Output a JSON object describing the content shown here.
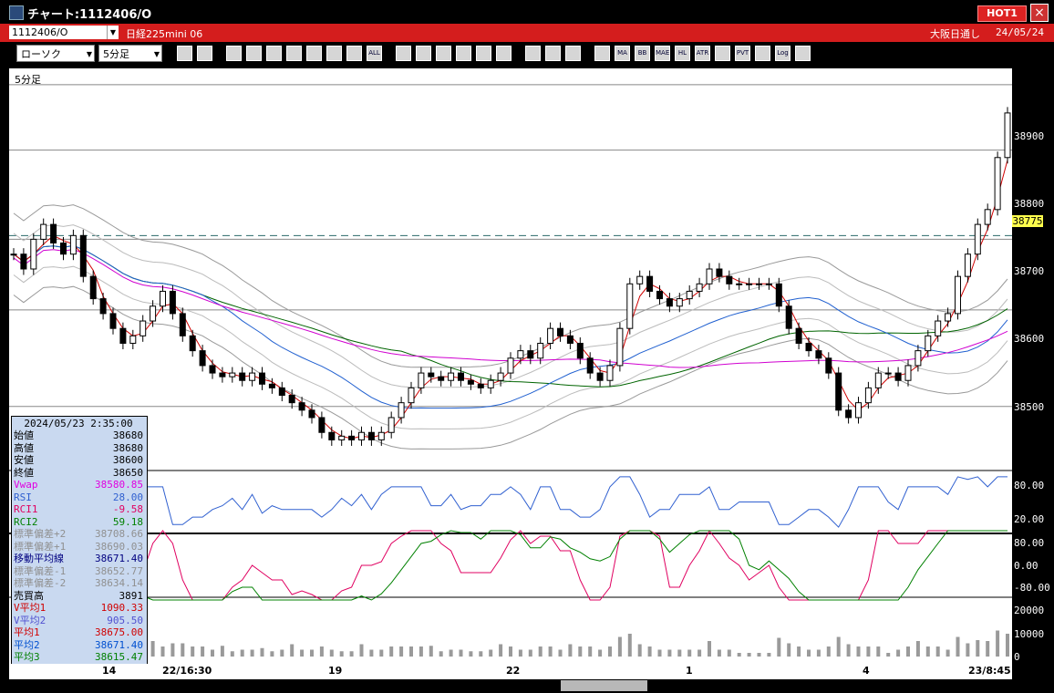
{
  "window": {
    "title": "チャート:1112406/O",
    "hot_label": "HOT1",
    "close_label": "×"
  },
  "infobar": {
    "symbol_code": "1112406/O",
    "symbol_name": "日経225mini 06",
    "market": "大阪日通し",
    "date": "24/05/24"
  },
  "toolbar": {
    "chart_type": "ローソク",
    "interval": "5分足",
    "buttons": [
      {
        "name": "zoom",
        "icon": "magnifier-icon",
        "label": ""
      },
      {
        "name": "columns",
        "icon": "grid-icon",
        "label": ""
      },
      {
        "name": "t1",
        "icon": "tool-icon",
        "label": ""
      },
      {
        "name": "t2",
        "icon": "tool-icon",
        "label": ""
      },
      {
        "name": "t3",
        "icon": "tool-icon",
        "label": ""
      },
      {
        "name": "t4",
        "icon": "tool-icon",
        "label": ""
      },
      {
        "name": "t5",
        "icon": "tool-icon",
        "label": ""
      },
      {
        "name": "t6",
        "icon": "tool-icon",
        "label": ""
      },
      {
        "name": "t7",
        "icon": "tool-icon",
        "label": ""
      },
      {
        "name": "all",
        "icon": "all-icon",
        "label": "ALL"
      },
      {
        "name": "t8",
        "icon": "pen-icon",
        "label": ""
      },
      {
        "name": "t9",
        "icon": "line-icon",
        "label": ""
      },
      {
        "name": "t10",
        "icon": "cursor-icon",
        "label": ""
      },
      {
        "name": "t11",
        "icon": "arrow-icon",
        "label": ""
      },
      {
        "name": "t12",
        "icon": "doc-icon",
        "label": ""
      },
      {
        "name": "t13",
        "icon": "trash-icon",
        "label": ""
      },
      {
        "name": "t14",
        "icon": "gear-icon",
        "label": ""
      },
      {
        "name": "t15",
        "icon": "wrench-icon",
        "label": ""
      },
      {
        "name": "t16",
        "icon": "color-icon",
        "label": ""
      },
      {
        "name": "t17",
        "icon": "indicator-icon",
        "label": ""
      },
      {
        "name": "ma",
        "icon": "ma-icon",
        "label": "MA"
      },
      {
        "name": "bb",
        "icon": "bb-icon",
        "label": "BB"
      },
      {
        "name": "mae",
        "icon": "mae-icon",
        "label": "MAE"
      },
      {
        "name": "hl",
        "icon": "hl-icon",
        "label": "HL"
      },
      {
        "name": "atr",
        "icon": "atr-icon",
        "label": "ATR"
      },
      {
        "name": "t18",
        "icon": "indicator-icon",
        "label": ""
      },
      {
        "name": "pvt",
        "icon": "pvt-icon",
        "label": "PVT"
      },
      {
        "name": "t19",
        "icon": "box-icon",
        "label": ""
      },
      {
        "name": "log",
        "icon": "log-icon",
        "label": "Log"
      },
      {
        "name": "t20",
        "icon": "plus-icon",
        "label": ""
      }
    ]
  },
  "pane": {
    "title": "5分足"
  },
  "axis": {
    "price": [
      "38900",
      "38800",
      "38700",
      "38600",
      "38500"
    ],
    "current_price": "38775",
    "rsi": [
      "80.00",
      "20.00"
    ],
    "rci": [
      "80.00",
      "0.00",
      "-80.00"
    ],
    "volume": [
      "20000",
      "10000",
      "0"
    ]
  },
  "x_labels": [
    "14",
    "22/16:30",
    "19",
    "22",
    "1",
    "4",
    "23/8:45"
  ],
  "info_panel": {
    "datetime": "2024/05/23 2:35:00",
    "rows": [
      {
        "k": "始値",
        "v": "38680",
        "color": "#000000"
      },
      {
        "k": "高値",
        "v": "38680",
        "color": "#000000"
      },
      {
        "k": "安値",
        "v": "38600",
        "color": "#000000"
      },
      {
        "k": "終値",
        "v": "38650",
        "color": "#000000"
      },
      {
        "k": "Vwap",
        "v": "38580.85",
        "color": "#e000e0"
      },
      {
        "k": "RSI",
        "v": "28.00",
        "color": "#3060d0"
      },
      {
        "k": "RCI1",
        "v": "-9.58",
        "color": "#e00060"
      },
      {
        "k": "RCI2",
        "v": "59.18",
        "color": "#008000"
      },
      {
        "k": "標準偏差+2",
        "v": "38708.66",
        "color": "#909090"
      },
      {
        "k": "標準偏差+1",
        "v": "38690.03",
        "color": "#909090"
      },
      {
        "k": "移動平均線",
        "v": "38671.40",
        "color": "#000080"
      },
      {
        "k": "標準偏差-1",
        "v": "38652.77",
        "color": "#909090"
      },
      {
        "k": "標準偏差-2",
        "v": "38634.14",
        "color": "#909090"
      },
      {
        "k": "売買高",
        "v": "3891",
        "color": "#000000"
      },
      {
        "k": "V平均1",
        "v": "1090.33",
        "color": "#d00000"
      },
      {
        "k": "V平均2",
        "v": "905.50",
        "color": "#5050d0"
      },
      {
        "k": "平均1",
        "v": "38675.00",
        "color": "#d00000"
      },
      {
        "k": "平均2",
        "v": "38671.40",
        "color": "#0050d0"
      },
      {
        "k": "平均3",
        "v": "38615.47",
        "color": "#008000"
      }
    ]
  },
  "chart_data": {
    "type": "candlestick",
    "price_range": [
      38430,
      38970
    ],
    "horizontal_levels": [
      38948,
      38860,
      38740,
      38645,
      38515
    ],
    "dashed_level": 38745,
    "closes": [
      38720,
      38700,
      38740,
      38760,
      38735,
      38720,
      38745,
      38690,
      38660,
      38640,
      38620,
      38600,
      38610,
      38630,
      38650,
      38670,
      38640,
      38610,
      38590,
      38570,
      38560,
      38555,
      38560,
      38550,
      38560,
      38545,
      38540,
      38530,
      38520,
      38510,
      38500,
      38480,
      38470,
      38475,
      38470,
      38480,
      38470,
      38480,
      38500,
      38520,
      38540,
      38560,
      38555,
      38550,
      38560,
      38550,
      38545,
      38540,
      38550,
      38560,
      38580,
      38590,
      38580,
      38600,
      38620,
      38610,
      38600,
      38580,
      38560,
      38550,
      38570,
      38620,
      38680,
      38690,
      38670,
      38660,
      38650,
      38660,
      38670,
      38680,
      38700,
      38690,
      38680,
      38680,
      38680,
      38680,
      38680,
      38650,
      38620,
      38600,
      38590,
      38580,
      38560,
      38510,
      38500,
      38520,
      38540,
      38560,
      38560,
      38550,
      38570,
      38590,
      38610,
      38630,
      38640,
      38690,
      38720,
      38760,
      38780,
      38850,
      38910
    ]
  }
}
